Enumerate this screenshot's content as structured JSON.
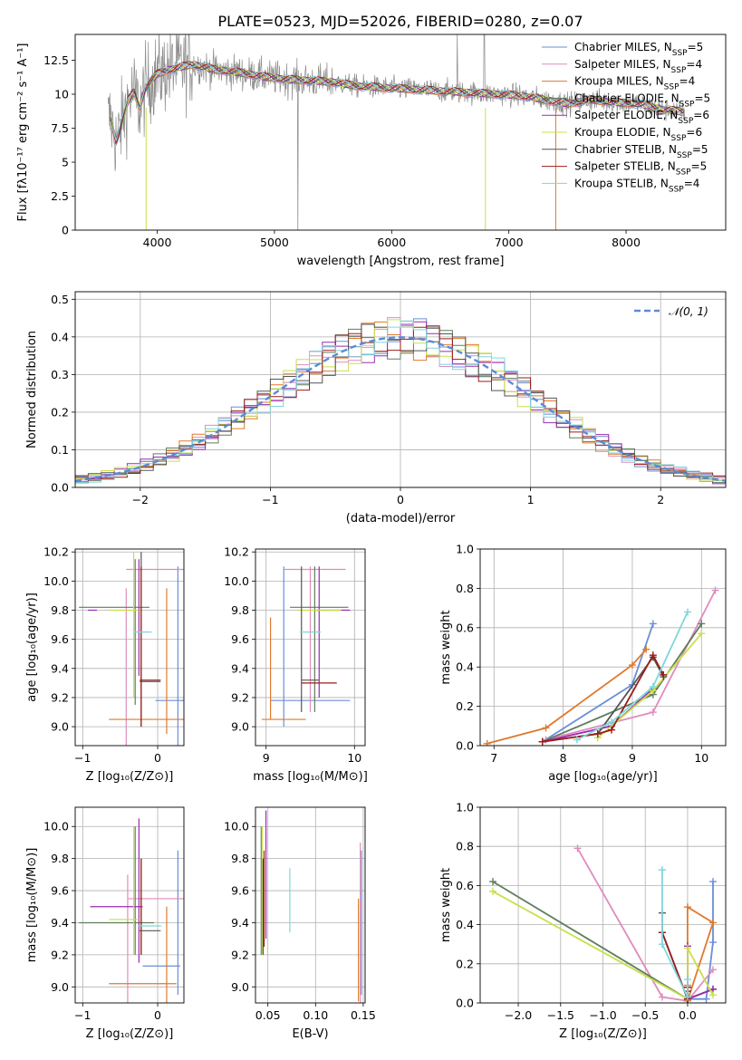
{
  "figure": {
    "title": "PLATE=0523, MJD=52026, FIBERID=0280, z=0.07"
  },
  "colors": {
    "chabrier_miles": "#6b8ed6",
    "salpeter_miles": "#e08bbd",
    "kroupa_miles": "#e0792b",
    "chabrier_elodie": "#5f7d5c",
    "salpeter_elodie": "#9a2bb0",
    "kroupa_elodie": "#c8e04a",
    "chabrier_stelib": "#555555",
    "salpeter_stelib": "#9b1c1c",
    "kroupa_stelib": "#7fd6dc",
    "data": "#8c8c8c",
    "gaussian": "#5b8bd6",
    "grid": "#b0b0b0"
  },
  "chart_data": [
    {
      "id": "spectrum",
      "type": "line",
      "title": "PLATE=0523, MJD=52026, FIBERID=0280, z=0.07",
      "xlabel": "wavelength [Angstrom, rest frame]",
      "ylabel": "Flux [fλ10⁻¹⁷ erg cm⁻² s⁻¹ A⁻¹]",
      "xlim": [
        3300,
        8850
      ],
      "ylim": [
        0,
        14.4
      ],
      "xticks": [
        4000,
        5000,
        6000,
        7000,
        8000
      ],
      "yticks": [
        0.0,
        2.5,
        5.0,
        7.5,
        10.0,
        12.5
      ],
      "grid": false,
      "legend": "top-right",
      "legend_entries": [
        "Chabrier MILES, N_SSP=5",
        "Salpeter MILES, N_SSP=4",
        "Kroupa MILES, N_SSP=4",
        "Chabrier ELODIE, N_SSP=5",
        "Salpeter ELODIE, N_SSP=6",
        "Kroupa ELODIE, N_SSP=6",
        "Chabrier STELIB, N_SSP=5",
        "Salpeter STELIB, N_SSP=5",
        "Kroupa STELIB, N_SSP=4"
      ],
      "continuum": {
        "x": [
          3600,
          3650,
          3700,
          3750,
          3800,
          3850,
          3900,
          3950,
          4000,
          4100,
          4200,
          4300,
          4400,
          4500,
          4700,
          4900,
          5100,
          5300,
          5500,
          5700,
          5900,
          6100,
          6300,
          6500,
          6700,
          6900,
          7100,
          7300,
          7500,
          7700,
          7900,
          8100,
          8300,
          8500
        ],
        "y": [
          8.2,
          6.5,
          8.0,
          9.5,
          10.2,
          9.0,
          10.5,
          11.0,
          11.5,
          11.8,
          12.0,
          12.2,
          12.0,
          11.8,
          11.6,
          11.3,
          11.1,
          11.0,
          10.9,
          10.6,
          10.5,
          10.4,
          10.3,
          10.2,
          10.1,
          10.0,
          9.9,
          9.6,
          9.3,
          9.6,
          9.4,
          9.3,
          8.9,
          8.7
        ]
      }
    },
    {
      "id": "residuals",
      "type": "step",
      "xlabel": "(data-model)/error",
      "ylabel": "Normed distribution",
      "xlim": [
        -2.5,
        2.5
      ],
      "ylim": [
        0,
        0.52
      ],
      "xticks": [
        -2,
        -1,
        0,
        1,
        2
      ],
      "yticks": [
        0.0,
        0.1,
        0.2,
        0.3,
        0.4,
        0.5
      ],
      "grid": true,
      "legend": "top-right",
      "legend_entries": [
        "𝒩(0, 1)"
      ],
      "gaussian": {
        "mean": 0,
        "sigma": 1
      },
      "bin_width": 0.1
    },
    {
      "id": "age-vs-z",
      "type": "errorbar",
      "xlabel": "Z [log₁₀(Z/Z⊙)]",
      "ylabel": "age  [log₁₀(age/yr)]",
      "xlim": [
        -1.1,
        0.35
      ],
      "ylim": [
        8.87,
        10.22
      ],
      "xticks": [
        -1,
        0
      ],
      "yticks": [
        9.0,
        9.2,
        9.4,
        9.6,
        9.8,
        10.0,
        10.2
      ],
      "grid": true,
      "series": [
        {
          "model": "chabrier_miles",
          "x": 0.27,
          "xerr": 0.3,
          "y": 9.18,
          "yerr": 0.92
        },
        {
          "model": "salpeter_miles",
          "x": -0.0,
          "xerr": 0.42,
          "y": 10.08,
          "yerr": 0.0
        },
        {
          "model": "salpeter_miles_b",
          "x": -0.42,
          "xerr": 0.0,
          "y": 9.4,
          "yerr": 0.55
        },
        {
          "model": "kroupa_miles",
          "x": -0.05,
          "xerr": 0.6,
          "y": 9.05,
          "yerr": 0.0
        },
        {
          "model": "kroupa_miles_b",
          "x": 0.12,
          "xerr": 0.0,
          "y": 9.45,
          "yerr": 0.5
        },
        {
          "model": "chabrier_elodie",
          "x": -0.58,
          "xerr": 0.47,
          "y": 9.82,
          "yerr": 0.0
        },
        {
          "model": "chabrier_elodie_b",
          "x": -0.3,
          "xerr": 0.0,
          "y": 9.65,
          "yerr": 0.5
        },
        {
          "model": "salpeter_elodie",
          "x": -0.87,
          "xerr": 0.06,
          "y": 9.8,
          "yerr": 0.0
        },
        {
          "model": "salpeter_elodie_b",
          "x": -0.25,
          "xerr": 0.0,
          "y": 9.75,
          "yerr": 0.4
        },
        {
          "model": "kroupa_elodie",
          "x": -0.45,
          "xerr": 0.2,
          "y": 9.8,
          "yerr": 0.0
        },
        {
          "model": "kroupa_elodie_b",
          "x": -0.32,
          "xerr": 0.0,
          "y": 9.7,
          "yerr": 0.5
        },
        {
          "model": "chabrier_stelib",
          "x": -0.22,
          "xerr": 0.0,
          "y": 9.6,
          "yerr": 0.6
        },
        {
          "model": "chabrier_stelib_b",
          "x": -0.1,
          "xerr": 0.14,
          "y": 9.31,
          "yerr": 0.0
        },
        {
          "model": "salpeter_stelib",
          "x": -0.1,
          "xerr": 0.14,
          "y": 9.32,
          "yerr": 0.0
        },
        {
          "model": "salpeter_stelib_b",
          "x": -0.22,
          "xerr": 0.0,
          "y": 9.55,
          "yerr": 0.55
        },
        {
          "model": "kroupa_stelib",
          "x": -0.2,
          "xerr": 0.12,
          "y": 9.65,
          "yerr": 0.0
        }
      ]
    },
    {
      "id": "age-vs-mass",
      "type": "errorbar",
      "xlabel": "mass [log₁₀(M/M⊙)]",
      "xlim": [
        8.88,
        10.12
      ],
      "ylim": [
        8.87,
        10.22
      ],
      "xticks": [
        9,
        10
      ],
      "yticks": [
        9.0,
        9.2,
        9.4,
        9.6,
        9.8,
        10.0,
        10.2
      ],
      "grid": true,
      "series": [
        {
          "model": "chabrier_miles",
          "x": 9.5,
          "xerr": 0.45,
          "y": 9.18,
          "yerr": 0.0
        },
        {
          "model": "chabrier_miles_b",
          "x": 9.2,
          "xerr": 0.0,
          "y": 9.55,
          "yerr": 0.55
        },
        {
          "model": "salpeter_miles",
          "x": 9.55,
          "xerr": 0.35,
          "y": 10.08,
          "yerr": 0.0
        },
        {
          "model": "salpeter_miles_b",
          "x": 9.5,
          "xerr": 0.0,
          "y": 9.6,
          "yerr": 0.5
        },
        {
          "model": "kroupa_miles",
          "x": 9.2,
          "xerr": 0.25,
          "y": 9.05,
          "yerr": 0.0
        },
        {
          "model": "kroupa_miles_b",
          "x": 9.05,
          "xerr": 0.0,
          "y": 9.4,
          "yerr": 0.35
        },
        {
          "model": "chabrier_elodie",
          "x": 9.6,
          "xerr": 0.33,
          "y": 9.82,
          "yerr": 0.0
        },
        {
          "model": "chabrier_elodie_b",
          "x": 9.55,
          "xerr": 0.0,
          "y": 9.6,
          "yerr": 0.5
        },
        {
          "model": "salpeter_elodie",
          "x": 9.75,
          "xerr": 0.2,
          "y": 9.8,
          "yerr": 0.0
        },
        {
          "model": "salpeter_elodie_b",
          "x": 9.6,
          "xerr": 0.0,
          "y": 9.65,
          "yerr": 0.45
        },
        {
          "model": "kroupa_elodie",
          "x": 9.6,
          "xerr": 0.25,
          "y": 9.8,
          "yerr": 0.0
        },
        {
          "model": "chabrier_stelib",
          "x": 9.4,
          "xerr": 0.0,
          "y": 9.6,
          "yerr": 0.5
        },
        {
          "model": "chabrier_stelib_b",
          "x": 9.5,
          "xerr": 0.1,
          "y": 9.32,
          "yerr": 0.0
        },
        {
          "model": "salpeter_stelib",
          "x": 9.6,
          "xerr": 0.2,
          "y": 9.3,
          "yerr": 0.0
        },
        {
          "model": "kroupa_stelib",
          "x": 9.5,
          "xerr": 0.12,
          "y": 9.65,
          "yerr": 0.0
        }
      ]
    },
    {
      "id": "massweight-vs-age",
      "type": "line",
      "xlabel": "age  [log₁₀(age/yr)]",
      "ylabel": "mass weight",
      "xlim": [
        6.8,
        10.35
      ],
      "ylim": [
        0,
        1.0
      ],
      "xticks": [
        7,
        8,
        9,
        10
      ],
      "yticks": [
        0.0,
        0.2,
        0.4,
        0.6,
        0.8,
        1.0
      ],
      "grid": true,
      "series": [
        {
          "model": "chabrier_miles",
          "x": [
            7.7,
            9.0,
            9.3
          ],
          "y": [
            0.02,
            0.31,
            0.62
          ]
        },
        {
          "model": "salpeter_miles",
          "x": [
            7.75,
            9.3,
            10.2
          ],
          "y": [
            0.03,
            0.17,
            0.79
          ]
        },
        {
          "model": "kroupa_miles",
          "x": [
            6.9,
            7.75,
            9.0,
            9.2
          ],
          "y": [
            0.01,
            0.09,
            0.41,
            0.49
          ]
        },
        {
          "model": "chabrier_elodie",
          "x": [
            7.7,
            9.3,
            10.0
          ],
          "y": [
            0.02,
            0.26,
            0.62
          ]
        },
        {
          "model": "salpeter_elodie",
          "x": [
            7.7,
            8.7,
            9.3
          ],
          "y": [
            0.02,
            0.1,
            0.29
          ]
        },
        {
          "model": "kroupa_elodie",
          "x": [
            8.5,
            9.3,
            10.0
          ],
          "y": [
            0.04,
            0.28,
            0.57
          ]
        },
        {
          "model": "chabrier_stelib",
          "x": [
            7.7,
            8.5,
            9.3,
            9.45
          ],
          "y": [
            0.02,
            0.06,
            0.45,
            0.35
          ]
        },
        {
          "model": "salpeter_stelib",
          "x": [
            7.7,
            8.5,
            8.7,
            9.3,
            9.45
          ],
          "y": [
            0.02,
            0.06,
            0.08,
            0.46,
            0.36
          ]
        },
        {
          "model": "kroupa_stelib",
          "x": [
            8.2,
            8.7,
            9.3,
            9.8
          ],
          "y": [
            0.03,
            0.12,
            0.3,
            0.68
          ]
        }
      ]
    },
    {
      "id": "mass-vs-z",
      "type": "errorbar",
      "xlabel": "Z [log₁₀(Z/Z⊙)]",
      "ylabel": "mass [log₁₀(M/M⊙)]",
      "xlim": [
        -1.1,
        0.35
      ],
      "ylim": [
        8.9,
        10.12
      ],
      "xticks": [
        -1,
        0
      ],
      "yticks": [
        9.0,
        9.2,
        9.4,
        9.6,
        9.8,
        10.0
      ],
      "grid": true,
      "series": [
        {
          "model": "chabrier_miles",
          "x": 0.05,
          "xerr": 0.25,
          "y": 9.13,
          "yerr": 0.0
        },
        {
          "model": "chabrier_miles_b",
          "x": 0.27,
          "xerr": 0.0,
          "y": 9.4,
          "yerr": 0.45
        },
        {
          "model": "salpeter_miles",
          "x": 0.0,
          "xerr": 0.4,
          "y": 9.55,
          "yerr": 0.0
        },
        {
          "model": "salpeter_miles_b",
          "x": -0.4,
          "xerr": 0.0,
          "y": 9.3,
          "yerr": 0.4
        },
        {
          "model": "kroupa_miles",
          "x": -0.2,
          "xerr": 0.45,
          "y": 9.02,
          "yerr": 0.0
        },
        {
          "model": "kroupa_miles_b",
          "x": 0.12,
          "xerr": 0.0,
          "y": 9.2,
          "yerr": 0.3
        },
        {
          "model": "chabrier_elodie",
          "x": -0.55,
          "xerr": 0.5,
          "y": 9.4,
          "yerr": 0.0
        },
        {
          "model": "chabrier_elodie_b",
          "x": -0.3,
          "xerr": 0.0,
          "y": 9.6,
          "yerr": 0.4
        },
        {
          "model": "salpeter_elodie",
          "x": -0.55,
          "xerr": 0.35,
          "y": 9.5,
          "yerr": 0.0
        },
        {
          "model": "salpeter_elodie_b",
          "x": -0.25,
          "xerr": 0.0,
          "y": 9.6,
          "yerr": 0.45
        },
        {
          "model": "kroupa_elodie",
          "x": -0.45,
          "xerr": 0.2,
          "y": 9.42,
          "yerr": 0.0
        },
        {
          "model": "kroupa_elodie_b",
          "x": -0.32,
          "xerr": 0.0,
          "y": 9.6,
          "yerr": 0.4
        },
        {
          "model": "chabrier_stelib",
          "x": -0.1,
          "xerr": 0.14,
          "y": 9.35,
          "yerr": 0.0
        },
        {
          "model": "chabrier_stelib_b",
          "x": -0.22,
          "xerr": 0.0,
          "y": 9.5,
          "yerr": 0.3
        },
        {
          "model": "salpeter_stelib",
          "x": -0.22,
          "xerr": 0.0,
          "y": 9.5,
          "yerr": 0.3
        },
        {
          "model": "kroupa_stelib",
          "x": -0.1,
          "xerr": 0.15,
          "y": 9.38,
          "yerr": 0.0
        }
      ]
    },
    {
      "id": "mass-vs-ebv",
      "type": "errorbar",
      "xlabel": "E(B-V)",
      "xlim": [
        0.037,
        0.152
      ],
      "ylim": [
        8.9,
        10.12
      ],
      "xticks": [
        0.05,
        0.1,
        0.15
      ],
      "yticks": [
        9.0,
        9.2,
        9.4,
        9.6,
        9.8,
        10.0
      ],
      "grid": true,
      "series": [
        {
          "model": "chabrier_miles",
          "x": 0.148,
          "y": 9.4,
          "yerr": 0.45
        },
        {
          "model": "salpeter_miles",
          "x": 0.147,
          "y": 9.4,
          "yerr": 0.5
        },
        {
          "model": "kroupa_miles",
          "x": 0.145,
          "y": 9.23,
          "yerr": 0.32
        },
        {
          "model": "chabrier_elodie",
          "x": 0.043,
          "y": 9.6,
          "yerr": 0.4
        },
        {
          "model": "salpeter_elodie",
          "x": 0.048,
          "y": 9.7,
          "yerr": 0.4
        },
        {
          "model": "kroupa_elodie",
          "x": 0.044,
          "y": 9.6,
          "yerr": 0.4
        },
        {
          "model": "chabrier_stelib",
          "x": 0.045,
          "y": 9.5,
          "yerr": 0.3
        },
        {
          "model": "salpeter_stelib",
          "x": 0.046,
          "y": 9.55,
          "yerr": 0.3
        },
        {
          "model": "kroupa_stelib",
          "x": 0.073,
          "y": 9.54,
          "yerr": 0.2
        }
      ]
    },
    {
      "id": "massweight-vs-z",
      "type": "line",
      "xlabel": "Z [log₁₀(Z/Z⊙)]",
      "ylabel": "mass weight",
      "xlim": [
        -2.45,
        0.45
      ],
      "ylim": [
        0,
        1.0
      ],
      "xticks": [
        -2.0,
        -1.5,
        -1.0,
        -0.5,
        0.0
      ],
      "yticks": [
        0.0,
        0.2,
        0.4,
        0.6,
        0.8,
        1.0
      ],
      "grid": true,
      "series": [
        {
          "model": "chabrier_miles",
          "x": [
            0.3,
            0.3,
            0.22,
            0.0
          ],
          "y": [
            0.62,
            0.31,
            0.02,
            0.02
          ]
        },
        {
          "model": "salpeter_miles",
          "x": [
            -1.3,
            -0.3,
            0.0,
            0.3
          ],
          "y": [
            0.79,
            0.03,
            0.01,
            0.17
          ]
        },
        {
          "model": "kroupa_miles",
          "x": [
            0.0,
            0.0,
            0.3,
            0.0
          ],
          "y": [
            0.09,
            0.49,
            0.41,
            0.01
          ]
        },
        {
          "model": "chabrier_elodie",
          "x": [
            -2.3,
            0.0,
            0.3
          ],
          "y": [
            0.62,
            0.02,
            0.07
          ]
        },
        {
          "model": "salpeter_elodie",
          "x": [
            0.0,
            0.0,
            0.3
          ],
          "y": [
            0.29,
            0.02,
            0.07
          ]
        },
        {
          "model": "kroupa_elodie",
          "x": [
            -2.3,
            0.0,
            0.0,
            0.3
          ],
          "y": [
            0.57,
            0.02,
            0.28,
            0.04
          ]
        },
        {
          "model": "chabrier_stelib",
          "x": [
            -0.3,
            -0.3,
            0.0,
            0.0
          ],
          "y": [
            0.46,
            0.36,
            0.02,
            0.08
          ]
        },
        {
          "model": "salpeter_stelib",
          "x": [
            -0.3,
            0.0,
            0.0,
            0.0
          ],
          "y": [
            0.36,
            0.02,
            0.08,
            0.06
          ]
        },
        {
          "model": "kroupa_stelib",
          "x": [
            -0.3,
            -0.3,
            0.0,
            0.0
          ],
          "y": [
            0.68,
            0.3,
            0.03,
            0.12
          ]
        }
      ]
    }
  ]
}
